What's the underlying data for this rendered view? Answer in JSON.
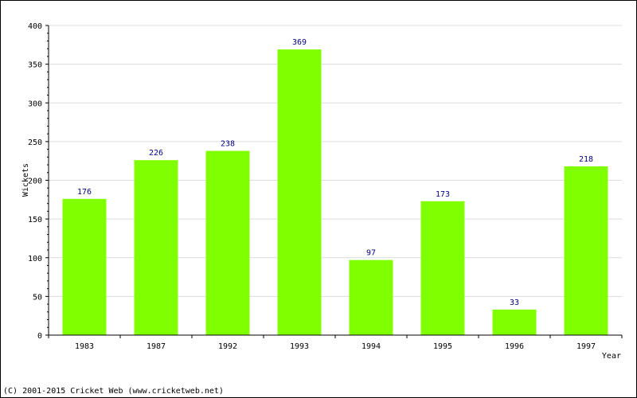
{
  "chart_data": {
    "type": "bar",
    "categories": [
      "1983",
      "1987",
      "1992",
      "1993",
      "1994",
      "1995",
      "1996",
      "1997"
    ],
    "values": [
      176,
      226,
      238,
      369,
      97,
      173,
      33,
      218
    ],
    "xlabel": "Year",
    "ylabel": "Wickets",
    "ylim": [
      0,
      400
    ],
    "yticks": [
      0,
      50,
      100,
      150,
      200,
      250,
      300,
      350,
      400
    ],
    "grid": true,
    "data_labels": true,
    "bar_color": "#80ff00",
    "label_color": "#000080"
  },
  "footer": {
    "copyright": "(C) 2001-2015 Cricket Web (www.cricketweb.net)"
  }
}
